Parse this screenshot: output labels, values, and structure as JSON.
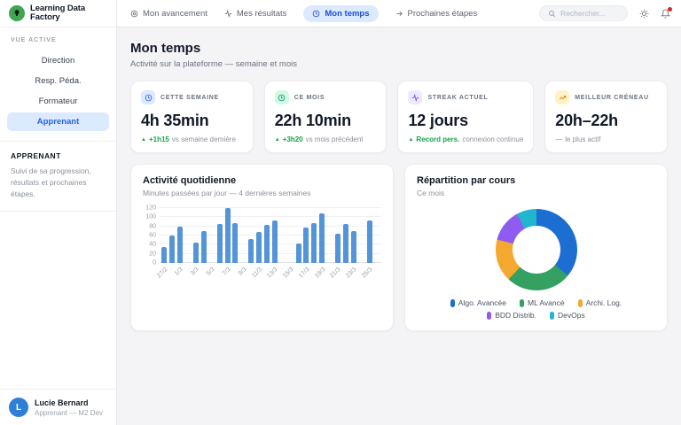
{
  "app": {
    "title": "Learning Data Factory",
    "logo_color": "#3fa653"
  },
  "sidebar": {
    "section_label": "VUE ACTIVE",
    "items": [
      {
        "label": "Direction",
        "active": false
      },
      {
        "label": "Resp. Péda.",
        "active": false
      },
      {
        "label": "Formateur",
        "active": false
      },
      {
        "label": "Apprenant",
        "active": true
      }
    ],
    "role_title": "APPRENANT",
    "role_description": "Suivi de sa progression, résultats et prochaines étapes.",
    "user": {
      "initial": "L",
      "name": "Lucie Bernard",
      "subtitle": "Apprenant — M2 Dev"
    }
  },
  "header": {
    "tabs": [
      {
        "label": "Mon avancement",
        "icon": "target-icon",
        "active": false
      },
      {
        "label": "Mes résultats",
        "icon": "activity-icon",
        "active": false
      },
      {
        "label": "Mon temps",
        "icon": "clock-icon",
        "active": true
      },
      {
        "label": "Prochaines étapes",
        "icon": "arrow-right-icon",
        "active": false
      }
    ],
    "search_placeholder": "Rechercher...",
    "icons": [
      "theme-icon",
      "bell-icon"
    ],
    "accent": "#2563eb",
    "accent_bg": "#dbeafe"
  },
  "page": {
    "title": "Mon temps",
    "subtitle": "Activité sur la plateforme — semaine et mois"
  },
  "stats": [
    {
      "label": "CETTE SEMAINE",
      "value": "4h 35min",
      "icon": "clock-icon",
      "icon_color": "#2563eb",
      "icon_bg": "#dbeafe",
      "delta_icon": "up",
      "delta": "+1h15",
      "delta_suffix": "vs semaine dernière"
    },
    {
      "label": "CE MOIS",
      "value": "22h 10min",
      "icon": "clock-icon",
      "icon_color": "#059669",
      "icon_bg": "#d1fae5",
      "delta_icon": "up",
      "delta": "+3h20",
      "delta_suffix": "vs mois précédent"
    },
    {
      "label": "STREAK ACTUEL",
      "value": "12 jours",
      "icon": "activity-icon",
      "icon_color": "#7c3aed",
      "icon_bg": "#ede9fe",
      "delta_icon": "up",
      "delta": "Record pers.",
      "delta_suffix": "connexion continue"
    },
    {
      "label": "MEILLEUR CRÉNEAU",
      "value": "20h–22h",
      "icon": "trend-up-icon",
      "icon_color": "#d97706",
      "icon_bg": "#fef3c7",
      "delta_icon": "dash",
      "delta": "",
      "delta_suffix": "le plus actif"
    }
  ],
  "chart_data": [
    {
      "type": "bar",
      "title": "Activité quotidienne",
      "subtitle": "Minutes passées par jour — 4 dernières semaines",
      "ylabel": "minutes",
      "ylim": [
        0,
        120
      ],
      "yticks": [
        0,
        20,
        40,
        60,
        80,
        100,
        120
      ],
      "grid": true,
      "label_every": 2,
      "bar_color": "#5494d8",
      "categories": [
        "27/2",
        "28/2",
        "1/3",
        "2/3",
        "3/3",
        "4/3",
        "5/3",
        "6/3",
        "7/3",
        "8/3",
        "9/3",
        "10/3",
        "11/3",
        "12/3",
        "13/3",
        "14/3",
        "15/3",
        "16/3",
        "17/3",
        "18/3",
        "19/3",
        "20/3",
        "21/3",
        "22/3",
        "23/3",
        "24/3",
        "25/3",
        "26/3"
      ],
      "values": [
        35,
        60,
        80,
        0,
        45,
        70,
        0,
        85,
        120,
        88,
        0,
        52,
        67,
        83,
        93,
        0,
        0,
        42,
        77,
        88,
        108,
        0,
        63,
        86,
        70,
        0,
        93,
        0
      ]
    },
    {
      "type": "pie",
      "donut": true,
      "title": "Répartition par cours",
      "subtitle": "Ce mois",
      "legend_position": "bottom",
      "labels": [
        "Algo. Avancée",
        "ML Avancé",
        "Archi. Log.",
        "BDD Distrib.",
        "DevOps"
      ],
      "values": [
        36,
        26,
        17,
        13,
        8
      ],
      "colors": [
        "#1d6ed2",
        "#34a062",
        "#f4a82f",
        "#8e5cf0",
        "#21b5cf"
      ]
    }
  ]
}
